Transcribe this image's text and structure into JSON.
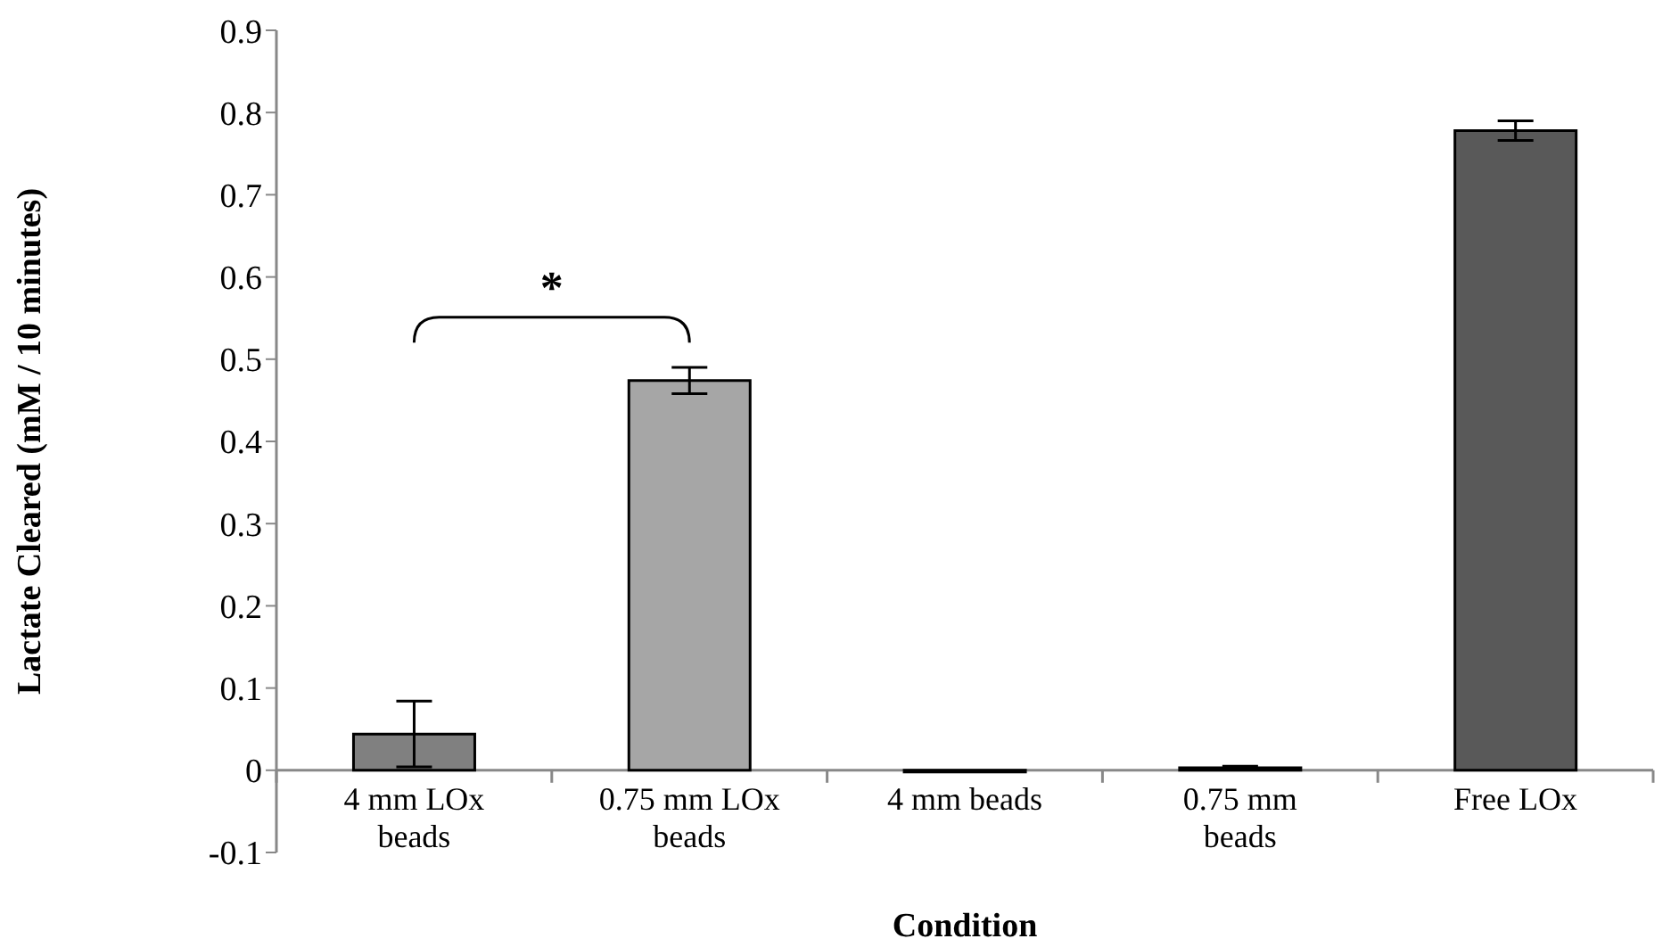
{
  "chart_data": {
    "type": "bar",
    "xlabel": "Condition",
    "ylabel": "Lactate Cleared (mM / 10 minutes)",
    "categories": [
      "4 mm LOx beads",
      "0.75 mm LOx beads",
      "4 mm beads",
      "0.75 mm beads",
      "Free LOx"
    ],
    "values": [
      0.044,
      0.474,
      -0.002,
      0.003,
      0.778
    ],
    "errors": [
      0.04,
      0.016,
      null,
      0.002,
      0.012
    ],
    "colors": [
      "#808080",
      "#a6a6a6",
      "#808080",
      "#808080",
      "#595959"
    ],
    "ylim": [
      -0.1,
      0.9
    ],
    "yticks": [
      -0.1,
      0,
      0.1,
      0.2,
      0.3,
      0.4,
      0.5,
      0.6,
      0.7,
      0.8,
      0.9
    ],
    "annotations": [
      "*"
    ]
  }
}
